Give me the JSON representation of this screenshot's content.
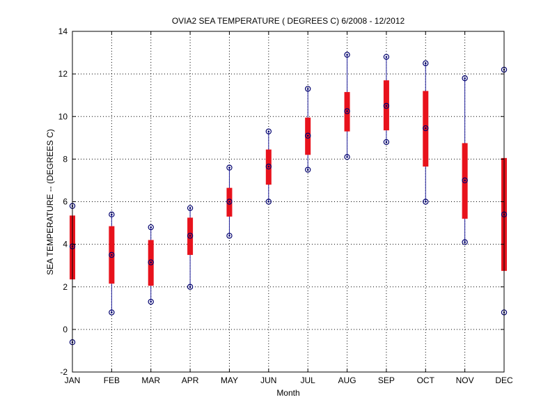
{
  "chart_data": {
    "type": "boxplot",
    "title": "OVIA2  SEA TEMPERATURE ( DEGREES C) 6/2008 - 12/2012",
    "xlabel": "Month",
    "ylabel": "SEA TEMPERATURE -- (DEGREES C)",
    "ylim": [
      -2,
      14
    ],
    "yticks": [
      -2,
      0,
      2,
      4,
      6,
      8,
      10,
      12,
      14
    ],
    "grid": true,
    "categories": [
      "JAN",
      "FEB",
      "MAR",
      "APR",
      "MAY",
      "JUN",
      "JUL",
      "AUG",
      "SEP",
      "OCT",
      "NOV",
      "DEC"
    ],
    "min": [
      -0.6,
      0.8,
      1.3,
      2.0,
      4.4,
      6.0,
      7.5,
      8.1,
      8.8,
      6.0,
      4.1,
      0.8
    ],
    "q1": [
      2.35,
      2.15,
      2.05,
      3.5,
      5.3,
      6.8,
      8.2,
      9.3,
      9.35,
      7.65,
      5.2,
      2.75
    ],
    "median": [
      3.9,
      3.5,
      3.15,
      4.4,
      6.0,
      7.65,
      9.1,
      10.25,
      10.5,
      9.45,
      7.0,
      5.4
    ],
    "q3": [
      5.35,
      4.85,
      4.2,
      5.25,
      6.65,
      8.45,
      9.95,
      11.15,
      11.7,
      11.2,
      8.75,
      8.05
    ],
    "max": [
      5.8,
      5.4,
      4.8,
      5.7,
      7.6,
      9.3,
      11.3,
      12.9,
      12.8,
      12.5,
      11.8,
      12.2
    ],
    "colors": {
      "box": "#e8121c",
      "whisker": "#1e1e9a",
      "marker": "#00006e",
      "grid": "#000000",
      "axis": "#000000"
    }
  }
}
